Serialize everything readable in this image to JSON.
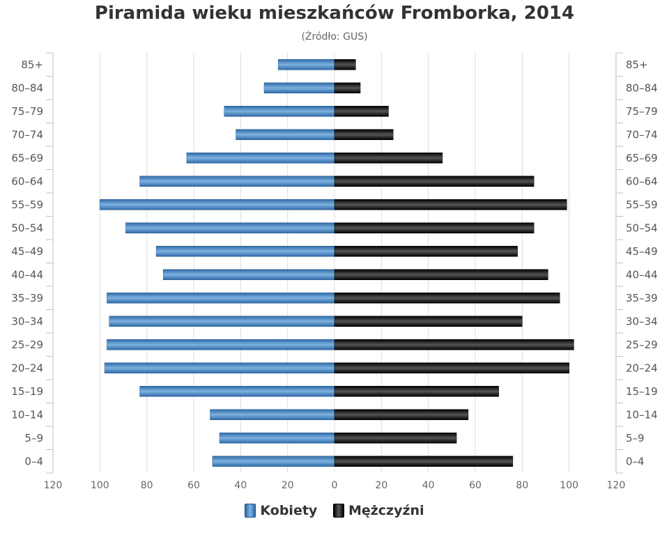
{
  "title": "Piramida wieku mieszkańców Fromborka, 2014",
  "subtitle": "(Źródło: GUS)",
  "chart_data": {
    "type": "bar",
    "orientation": "horizontal-population-pyramid",
    "categories": [
      "85+",
      "80–84",
      "75–79",
      "70–74",
      "65–69",
      "60–64",
      "55–59",
      "50–54",
      "45–49",
      "40–44",
      "35–39",
      "30–34",
      "25–29",
      "20–24",
      "15–19",
      "10–14",
      "5–9",
      "0–4"
    ],
    "series": [
      {
        "name": "Kobiety",
        "color": "#4a8bc9",
        "values": [
          24,
          30,
          47,
          42,
          63,
          83,
          100,
          89,
          76,
          73,
          97,
          96,
          97,
          98,
          83,
          53,
          49,
          52
        ]
      },
      {
        "name": "Mężczyźni",
        "color": "#1a1a1a",
        "values": [
          9,
          11,
          23,
          25,
          46,
          85,
          99,
          85,
          78,
          91,
          96,
          80,
          102,
          100,
          70,
          57,
          52,
          76
        ]
      }
    ],
    "x_ticks": [
      "120",
      "100",
      "80",
      "60",
      "40",
      "20",
      "0",
      "20",
      "40",
      "60",
      "80",
      "100",
      "120"
    ],
    "xlim": [
      -120,
      120
    ],
    "grid": true,
    "legend_position": "bottom-center"
  }
}
